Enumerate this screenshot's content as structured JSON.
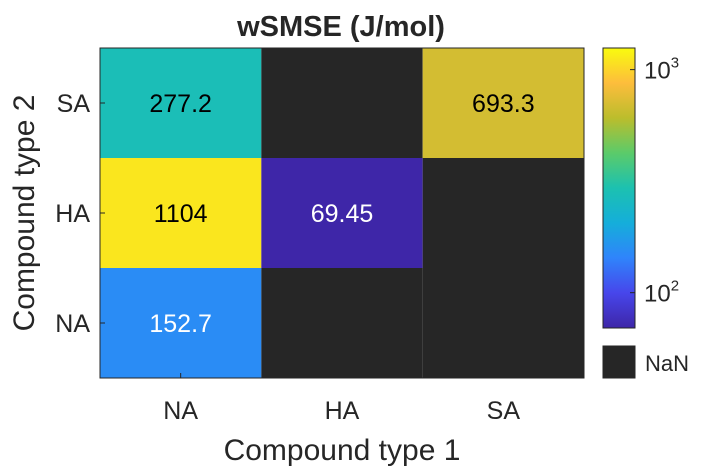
{
  "chart_data": {
    "type": "heatmap",
    "title": "wSMSE (J/mol)",
    "xlabel": "Compound type 1",
    "ylabel": "Compound type 2",
    "x_categories": [
      "NA",
      "HA",
      "SA"
    ],
    "y_categories": [
      "SA",
      "HA",
      "NA"
    ],
    "cells": [
      {
        "x": "NA",
        "y": "SA",
        "value": 277.2,
        "label": "277.2"
      },
      {
        "x": "HA",
        "y": "SA",
        "value": null,
        "label": ""
      },
      {
        "x": "SA",
        "y": "SA",
        "value": 693.3,
        "label": "693.3"
      },
      {
        "x": "NA",
        "y": "HA",
        "value": 1104,
        "label": "1104"
      },
      {
        "x": "HA",
        "y": "HA",
        "value": 69.45,
        "label": "69.45"
      },
      {
        "x": "SA",
        "y": "HA",
        "value": null,
        "label": ""
      },
      {
        "x": "NA",
        "y": "NA",
        "value": 152.7,
        "label": "152.7"
      },
      {
        "x": "HA",
        "y": "NA",
        "value": null,
        "label": ""
      },
      {
        "x": "SA",
        "y": "NA",
        "value": null,
        "label": ""
      }
    ],
    "colorbar": {
      "scale": "log",
      "range": [
        69.45,
        1250
      ],
      "colormap": "parula",
      "ticks": [
        {
          "value": 100,
          "base": "10",
          "exp": "2"
        },
        {
          "value": 1000,
          "base": "10",
          "exp": "3"
        }
      ]
    },
    "missing": {
      "label": "NaN",
      "color": "#262626"
    }
  }
}
